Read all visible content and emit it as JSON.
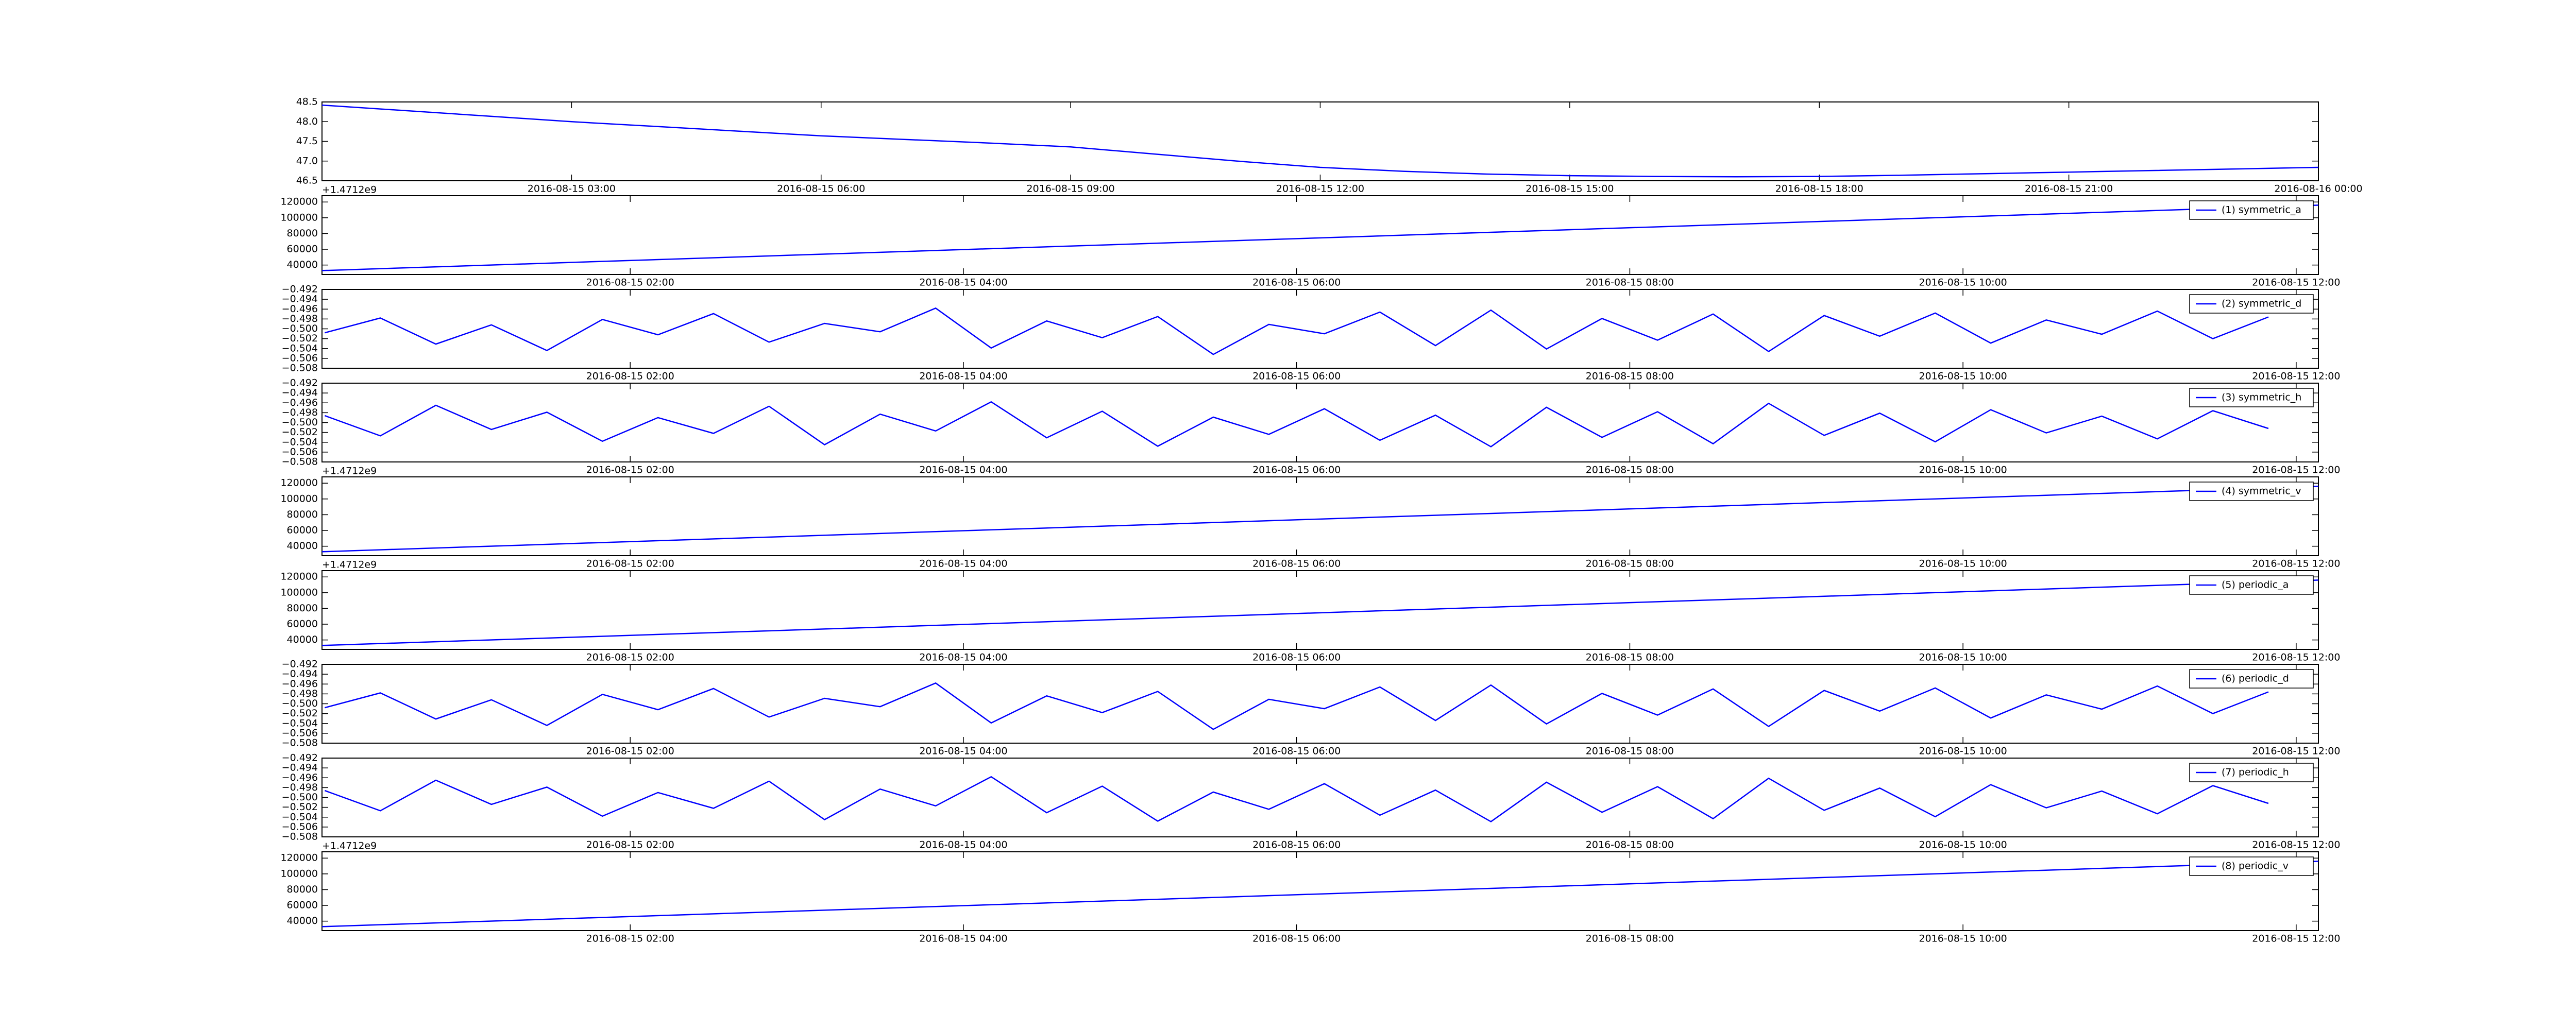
{
  "chart_data": [
    {
      "type": "line",
      "xlim": [
        "2016-08-15 00:00",
        "2016-08-16 00:00"
      ],
      "xticks": [
        "2016-08-15 03:00",
        "2016-08-15 06:00",
        "2016-08-15 09:00",
        "2016-08-15 12:00",
        "2016-08-15 15:00",
        "2016-08-15 18:00",
        "2016-08-15 21:00",
        "2016-08-16 00:00"
      ],
      "ylim": [
        46.5,
        48.5
      ],
      "yticks": [
        46.5,
        {
          "value": 47.0,
          "label": "47.0"
        },
        47.5,
        {
          "value": 48.0,
          "label": "48.0"
        },
        48.5
      ],
      "x": [
        "2016-08-15 00:00",
        "2016-08-15 01:00",
        "2016-08-15 02:00",
        "2016-08-15 03:00",
        "2016-08-15 04:00",
        "2016-08-15 05:00",
        "2016-08-15 06:00",
        "2016-08-15 07:00",
        "2016-08-15 08:00",
        "2016-08-15 09:00",
        "2016-08-15 10:00",
        "2016-08-15 11:00",
        "2016-08-15 12:00",
        "2016-08-15 13:00",
        "2016-08-15 14:00",
        "2016-08-15 15:00",
        "2016-08-15 16:00",
        "2016-08-15 17:00",
        "2016-08-15 18:00",
        "2016-08-15 19:00",
        "2016-08-15 20:00",
        "2016-08-15 21:00",
        "2016-08-15 22:00",
        "2016-08-15 23:00",
        "2016-08-16 00:00"
      ],
      "series": [
        {
          "color": "#0000ff",
          "values": [
            48.42,
            48.28,
            48.14,
            48.0,
            47.88,
            47.76,
            47.64,
            47.55,
            47.46,
            47.36,
            47.18,
            47.0,
            46.84,
            46.74,
            46.67,
            46.63,
            46.61,
            46.6,
            46.61,
            46.64,
            46.68,
            46.72,
            46.76,
            46.8,
            46.84
          ]
        }
      ]
    },
    {
      "type": "line",
      "offset_text": "+1.4712e9",
      "xlim": [
        "2016-08-15 00:09",
        "2016-08-15 12:08"
      ],
      "xticks": [
        "2016-08-15 02:00",
        "2016-08-15 04:00",
        "2016-08-15 06:00",
        "2016-08-15 08:00",
        "2016-08-15 10:00",
        "2016-08-15 12:00"
      ],
      "ylim": [
        28000,
        128000
      ],
      "yticks": [
        40000,
        60000,
        80000,
        100000,
        120000
      ],
      "x": [
        "2016-08-15 00:09",
        "2016-08-15 12:08"
      ],
      "series": [
        {
          "name": "(1) symmetric_a",
          "color": "#0000ff",
          "values": [
            33000,
            116000
          ]
        }
      ]
    },
    {
      "type": "line",
      "xlim": [
        "2016-08-15 00:09",
        "2016-08-15 12:08"
      ],
      "xticks": [
        "2016-08-15 02:00",
        "2016-08-15 04:00",
        "2016-08-15 06:00",
        "2016-08-15 08:00",
        "2016-08-15 10:00",
        "2016-08-15 12:00"
      ],
      "ylim": [
        -0.508,
        -0.492
      ],
      "yticks": [
        {
          "value": -0.508,
          "label": "−0.508"
        },
        {
          "value": -0.506,
          "label": "−0.506"
        },
        {
          "value": -0.504,
          "label": "−0.504"
        },
        {
          "value": -0.502,
          "label": "−0.502"
        },
        {
          "value": -0.5,
          "label": "−0.500"
        },
        {
          "value": -0.498,
          "label": "−0.498"
        },
        {
          "value": -0.496,
          "label": "−0.496"
        },
        {
          "value": -0.494,
          "label": "−0.494"
        },
        {
          "value": -0.492,
          "label": "−0.492"
        }
      ],
      "x": [
        "2016-08-15 00:10",
        "2016-08-15 00:30",
        "2016-08-15 00:50",
        "2016-08-15 01:10",
        "2016-08-15 01:30",
        "2016-08-15 01:50",
        "2016-08-15 02:10",
        "2016-08-15 02:30",
        "2016-08-15 02:50",
        "2016-08-15 03:10",
        "2016-08-15 03:30",
        "2016-08-15 03:50",
        "2016-08-15 04:10",
        "2016-08-15 04:30",
        "2016-08-15 04:50",
        "2016-08-15 05:10",
        "2016-08-15 05:30",
        "2016-08-15 05:50",
        "2016-08-15 06:10",
        "2016-08-15 06:30",
        "2016-08-15 06:50",
        "2016-08-15 07:10",
        "2016-08-15 07:30",
        "2016-08-15 07:50",
        "2016-08-15 08:10",
        "2016-08-15 08:30",
        "2016-08-15 08:50",
        "2016-08-15 09:10",
        "2016-08-15 09:30",
        "2016-08-15 09:50",
        "2016-08-15 10:10",
        "2016-08-15 10:30",
        "2016-08-15 10:50",
        "2016-08-15 11:10",
        "2016-08-15 11:30",
        "2016-08-15 11:50"
      ],
      "series": [
        {
          "name": "(2) symmetric_d",
          "color": "#0000ff",
          "values": [
            -0.5008,
            -0.4978,
            -0.5031,
            -0.4992,
            -0.5044,
            -0.4981,
            -0.5012,
            -0.4969,
            -0.5027,
            -0.4989,
            -0.5006,
            -0.4958,
            -0.5039,
            -0.4984,
            -0.5018,
            -0.4975,
            -0.5052,
            -0.4991,
            -0.501,
            -0.4966,
            -0.5034,
            -0.4962,
            -0.5041,
            -0.4979,
            -0.5023,
            -0.497,
            -0.5046,
            -0.4973,
            -0.5015,
            -0.4968,
            -0.5029,
            -0.4982,
            -0.5011,
            -0.4964,
            -0.502,
            -0.4976
          ]
        }
      ]
    },
    {
      "type": "line",
      "xlim": [
        "2016-08-15 00:09",
        "2016-08-15 12:08"
      ],
      "xticks": [
        "2016-08-15 02:00",
        "2016-08-15 04:00",
        "2016-08-15 06:00",
        "2016-08-15 08:00",
        "2016-08-15 10:00",
        "2016-08-15 12:00"
      ],
      "ylim": [
        -0.508,
        -0.492
      ],
      "yticks": [
        {
          "value": -0.508,
          "label": "−0.508"
        },
        {
          "value": -0.506,
          "label": "−0.506"
        },
        {
          "value": -0.504,
          "label": "−0.504"
        },
        {
          "value": -0.502,
          "label": "−0.502"
        },
        {
          "value": -0.5,
          "label": "−0.500"
        },
        {
          "value": -0.498,
          "label": "−0.498"
        },
        {
          "value": -0.496,
          "label": "−0.496"
        },
        {
          "value": -0.494,
          "label": "−0.494"
        },
        {
          "value": -0.492,
          "label": "−0.492"
        }
      ],
      "x": [
        "2016-08-15 00:10",
        "2016-08-15 00:30",
        "2016-08-15 00:50",
        "2016-08-15 01:10",
        "2016-08-15 01:30",
        "2016-08-15 01:50",
        "2016-08-15 02:10",
        "2016-08-15 02:30",
        "2016-08-15 02:50",
        "2016-08-15 03:10",
        "2016-08-15 03:30",
        "2016-08-15 03:50",
        "2016-08-15 04:10",
        "2016-08-15 04:30",
        "2016-08-15 04:50",
        "2016-08-15 05:10",
        "2016-08-15 05:30",
        "2016-08-15 05:50",
        "2016-08-15 06:10",
        "2016-08-15 06:30",
        "2016-08-15 06:50",
        "2016-08-15 07:10",
        "2016-08-15 07:30",
        "2016-08-15 07:50",
        "2016-08-15 08:10",
        "2016-08-15 08:30",
        "2016-08-15 08:50",
        "2016-08-15 09:10",
        "2016-08-15 09:30",
        "2016-08-15 09:50",
        "2016-08-15 10:10",
        "2016-08-15 10:30",
        "2016-08-15 10:50",
        "2016-08-15 11:10",
        "2016-08-15 11:30",
        "2016-08-15 11:50"
      ],
      "series": [
        {
          "name": "(3) symmetric_h",
          "color": "#0000ff",
          "values": [
            -0.4986,
            -0.5027,
            -0.4965,
            -0.5014,
            -0.4979,
            -0.5038,
            -0.499,
            -0.5022,
            -0.4967,
            -0.5045,
            -0.4983,
            -0.5017,
            -0.4958,
            -0.5031,
            -0.4977,
            -0.5048,
            -0.4989,
            -0.5024,
            -0.4972,
            -0.5036,
            -0.4985,
            -0.5049,
            -0.4969,
            -0.503,
            -0.4978,
            -0.5043,
            -0.4961,
            -0.5026,
            -0.4981,
            -0.5039,
            -0.4974,
            -0.5021,
            -0.4987,
            -0.5033,
            -0.4976,
            -0.5012
          ]
        }
      ]
    },
    {
      "type": "line",
      "offset_text": "+1.4712e9",
      "xlim": [
        "2016-08-15 00:09",
        "2016-08-15 12:08"
      ],
      "xticks": [
        "2016-08-15 02:00",
        "2016-08-15 04:00",
        "2016-08-15 06:00",
        "2016-08-15 08:00",
        "2016-08-15 10:00",
        "2016-08-15 12:00"
      ],
      "ylim": [
        28000,
        128000
      ],
      "yticks": [
        40000,
        60000,
        80000,
        100000,
        120000
      ],
      "x": [
        "2016-08-15 00:09",
        "2016-08-15 12:08"
      ],
      "series": [
        {
          "name": "(4) symmetric_v",
          "color": "#0000ff",
          "values": [
            33000,
            116000
          ]
        }
      ]
    },
    {
      "type": "line",
      "offset_text": "+1.4712e9",
      "xlim": [
        "2016-08-15 00:09",
        "2016-08-15 12:08"
      ],
      "xticks": [
        "2016-08-15 02:00",
        "2016-08-15 04:00",
        "2016-08-15 06:00",
        "2016-08-15 08:00",
        "2016-08-15 10:00",
        "2016-08-15 12:00"
      ],
      "ylim": [
        28000,
        128000
      ],
      "yticks": [
        40000,
        60000,
        80000,
        100000,
        120000
      ],
      "x": [
        "2016-08-15 00:09",
        "2016-08-15 12:08"
      ],
      "series": [
        {
          "name": "(5) periodic_a",
          "color": "#0000ff",
          "values": [
            33000,
            116000
          ]
        }
      ]
    },
    {
      "type": "line",
      "xlim": [
        "2016-08-15 00:09",
        "2016-08-15 12:08"
      ],
      "xticks": [
        "2016-08-15 02:00",
        "2016-08-15 04:00",
        "2016-08-15 06:00",
        "2016-08-15 08:00",
        "2016-08-15 10:00",
        "2016-08-15 12:00"
      ],
      "ylim": [
        -0.508,
        -0.492
      ],
      "yticks": [
        {
          "value": -0.508,
          "label": "−0.508"
        },
        {
          "value": -0.506,
          "label": "−0.506"
        },
        {
          "value": -0.504,
          "label": "−0.504"
        },
        {
          "value": -0.502,
          "label": "−0.502"
        },
        {
          "value": -0.5,
          "label": "−0.500"
        },
        {
          "value": -0.498,
          "label": "−0.498"
        },
        {
          "value": -0.496,
          "label": "−0.496"
        },
        {
          "value": -0.494,
          "label": "−0.494"
        },
        {
          "value": -0.492,
          "label": "−0.492"
        }
      ],
      "x": [
        "2016-08-15 00:10",
        "2016-08-15 00:30",
        "2016-08-15 00:50",
        "2016-08-15 01:10",
        "2016-08-15 01:30",
        "2016-08-15 01:50",
        "2016-08-15 02:10",
        "2016-08-15 02:30",
        "2016-08-15 02:50",
        "2016-08-15 03:10",
        "2016-08-15 03:30",
        "2016-08-15 03:50",
        "2016-08-15 04:10",
        "2016-08-15 04:30",
        "2016-08-15 04:50",
        "2016-08-15 05:10",
        "2016-08-15 05:30",
        "2016-08-15 05:50",
        "2016-08-15 06:10",
        "2016-08-15 06:30",
        "2016-08-15 06:50",
        "2016-08-15 07:10",
        "2016-08-15 07:30",
        "2016-08-15 07:50",
        "2016-08-15 08:10",
        "2016-08-15 08:30",
        "2016-08-15 08:50",
        "2016-08-15 09:10",
        "2016-08-15 09:30",
        "2016-08-15 09:50",
        "2016-08-15 10:10",
        "2016-08-15 10:30",
        "2016-08-15 10:50",
        "2016-08-15 11:10",
        "2016-08-15 11:30",
        "2016-08-15 11:50"
      ],
      "series": [
        {
          "name": "(6) periodic_d",
          "color": "#0000ff",
          "values": [
            -0.5008,
            -0.4978,
            -0.5031,
            -0.4992,
            -0.5044,
            -0.4981,
            -0.5012,
            -0.4969,
            -0.5027,
            -0.4989,
            -0.5006,
            -0.4958,
            -0.5039,
            -0.4984,
            -0.5018,
            -0.4975,
            -0.5052,
            -0.4991,
            -0.501,
            -0.4966,
            -0.5034,
            -0.4962,
            -0.5041,
            -0.4979,
            -0.5023,
            -0.497,
            -0.5046,
            -0.4973,
            -0.5015,
            -0.4968,
            -0.5029,
            -0.4982,
            -0.5011,
            -0.4964,
            -0.502,
            -0.4976
          ]
        }
      ]
    },
    {
      "type": "line",
      "xlim": [
        "2016-08-15 00:09",
        "2016-08-15 12:08"
      ],
      "xticks": [
        "2016-08-15 02:00",
        "2016-08-15 04:00",
        "2016-08-15 06:00",
        "2016-08-15 08:00",
        "2016-08-15 10:00",
        "2016-08-15 12:00"
      ],
      "ylim": [
        -0.508,
        -0.492
      ],
      "yticks": [
        {
          "value": -0.508,
          "label": "−0.508"
        },
        {
          "value": -0.506,
          "label": "−0.506"
        },
        {
          "value": -0.504,
          "label": "−0.504"
        },
        {
          "value": -0.502,
          "label": "−0.502"
        },
        {
          "value": -0.5,
          "label": "−0.500"
        },
        {
          "value": -0.498,
          "label": "−0.498"
        },
        {
          "value": -0.496,
          "label": "−0.496"
        },
        {
          "value": -0.494,
          "label": "−0.494"
        },
        {
          "value": -0.492,
          "label": "−0.492"
        }
      ],
      "x": [
        "2016-08-15 00:10",
        "2016-08-15 00:30",
        "2016-08-15 00:50",
        "2016-08-15 01:10",
        "2016-08-15 01:30",
        "2016-08-15 01:50",
        "2016-08-15 02:10",
        "2016-08-15 02:30",
        "2016-08-15 02:50",
        "2016-08-15 03:10",
        "2016-08-15 03:30",
        "2016-08-15 03:50",
        "2016-08-15 04:10",
        "2016-08-15 04:30",
        "2016-08-15 04:50",
        "2016-08-15 05:10",
        "2016-08-15 05:30",
        "2016-08-15 05:50",
        "2016-08-15 06:10",
        "2016-08-15 06:30",
        "2016-08-15 06:50",
        "2016-08-15 07:10",
        "2016-08-15 07:30",
        "2016-08-15 07:50",
        "2016-08-15 08:10",
        "2016-08-15 08:30",
        "2016-08-15 08:50",
        "2016-08-15 09:10",
        "2016-08-15 09:30",
        "2016-08-15 09:50",
        "2016-08-15 10:10",
        "2016-08-15 10:30",
        "2016-08-15 10:50",
        "2016-08-15 11:10",
        "2016-08-15 11:30",
        "2016-08-15 11:50"
      ],
      "series": [
        {
          "name": "(7) periodic_h",
          "color": "#0000ff",
          "values": [
            -0.4986,
            -0.5027,
            -0.4965,
            -0.5014,
            -0.4979,
            -0.5038,
            -0.499,
            -0.5022,
            -0.4967,
            -0.5045,
            -0.4983,
            -0.5017,
            -0.4958,
            -0.5031,
            -0.4977,
            -0.5048,
            -0.4989,
            -0.5024,
            -0.4972,
            -0.5036,
            -0.4985,
            -0.5049,
            -0.4969,
            -0.503,
            -0.4978,
            -0.5043,
            -0.4961,
            -0.5026,
            -0.4981,
            -0.5039,
            -0.4974,
            -0.5021,
            -0.4987,
            -0.5033,
            -0.4976,
            -0.5012
          ]
        }
      ]
    },
    {
      "type": "line",
      "offset_text": "+1.4712e9",
      "xlim": [
        "2016-08-15 00:09",
        "2016-08-15 12:08"
      ],
      "xticks": [
        "2016-08-15 02:00",
        "2016-08-15 04:00",
        "2016-08-15 06:00",
        "2016-08-15 08:00",
        "2016-08-15 10:00",
        "2016-08-15 12:00"
      ],
      "ylim": [
        28000,
        128000
      ],
      "yticks": [
        40000,
        60000,
        80000,
        100000,
        120000
      ],
      "x": [
        "2016-08-15 00:09",
        "2016-08-15 12:08"
      ],
      "series": [
        {
          "name": "(8) periodic_v",
          "color": "#0000ff",
          "values": [
            33000,
            116000
          ]
        }
      ]
    }
  ]
}
